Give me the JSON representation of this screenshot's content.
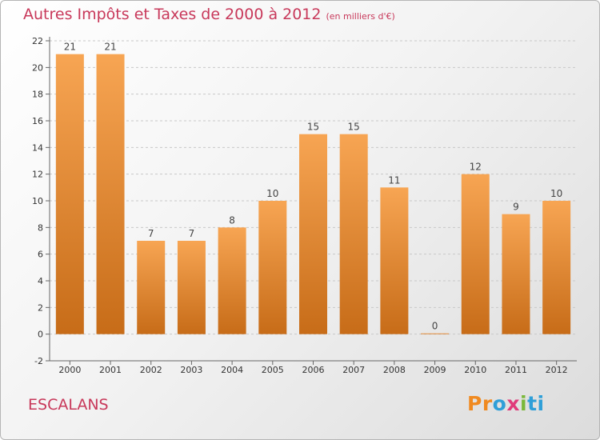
{
  "title": "Autres Impôts et Taxes de 2000 à 2012",
  "subtitle": "(en milliers d'€)",
  "commune": "ESCALANS",
  "logo": {
    "p1": "Pr",
    "p2": "o",
    "p3": "x",
    "p4": "i",
    "p5": "ti"
  },
  "colors": {
    "title": "#c8385a",
    "bar_light": "#f7a553",
    "bar_dark": "#c76c18",
    "grid": "#c8c8c8"
  },
  "chart_data": {
    "type": "bar",
    "categories": [
      "2000",
      "2001",
      "2002",
      "2003",
      "2004",
      "2005",
      "2006",
      "2007",
      "2008",
      "2009",
      "2010",
      "2011",
      "2012"
    ],
    "values": [
      21,
      21,
      7,
      7,
      8,
      10,
      15,
      15,
      11,
      0,
      12,
      9,
      10
    ],
    "yticks": [
      -2,
      0,
      2,
      4,
      6,
      8,
      10,
      12,
      14,
      16,
      18,
      20,
      22
    ],
    "ylim": [
      -2,
      22
    ],
    "grid": "horizontal dashed",
    "legend": "none"
  }
}
